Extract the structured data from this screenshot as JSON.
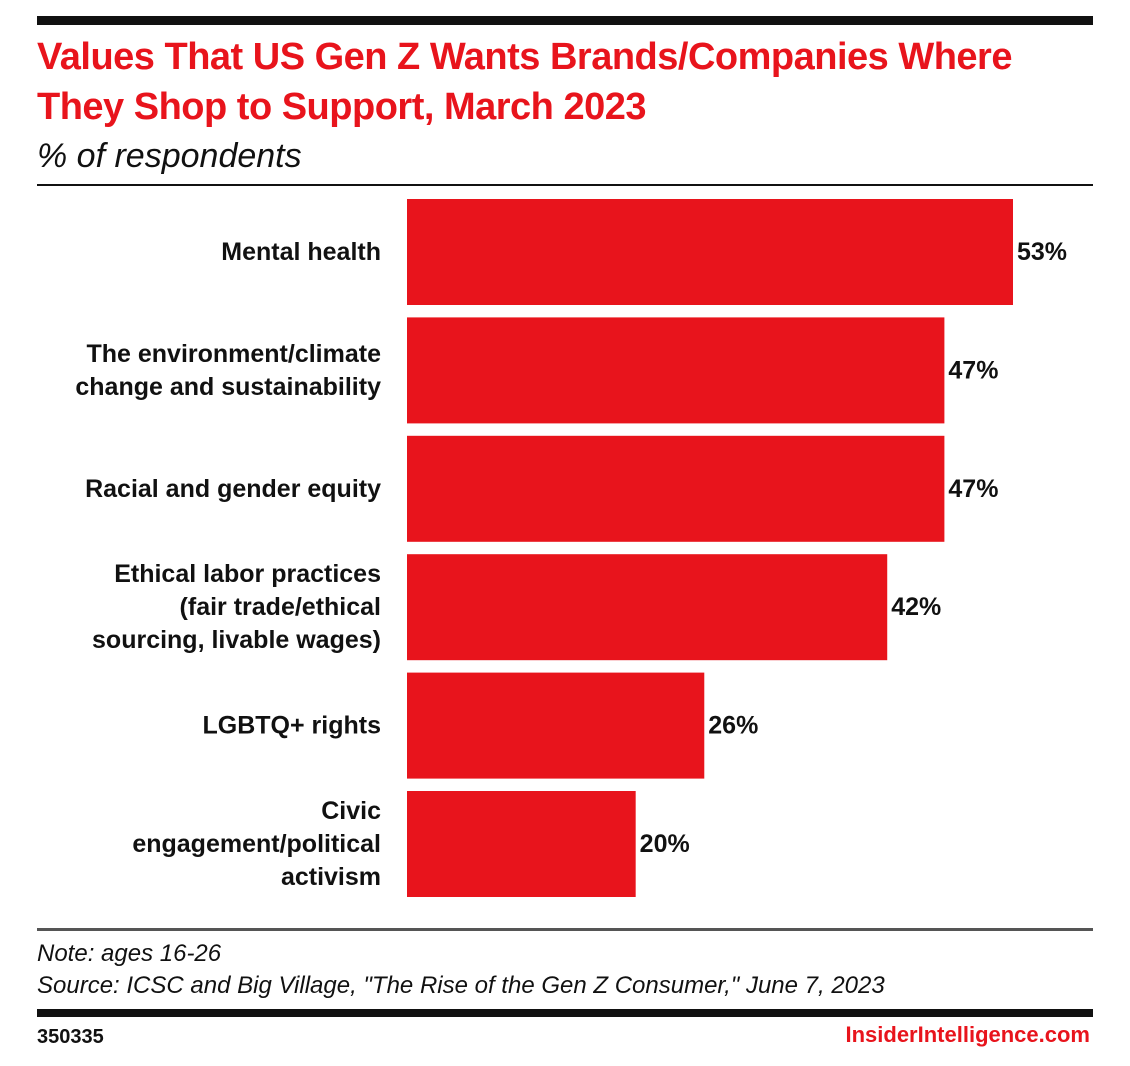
{
  "header": {
    "title": "Values That US Gen Z Wants Brands/Companies Where They Shop to Support, March 2023",
    "subtitle": "% of respondents"
  },
  "chart_data": {
    "type": "bar",
    "orientation": "horizontal",
    "title": "Values That US Gen Z Wants Brands/Companies Where They Shop to Support, March 2023",
    "subtitle": "% of respondents",
    "xlabel": "",
    "ylabel": "",
    "xlim": [
      0,
      53
    ],
    "grid": false,
    "legend": "none",
    "unit": "%",
    "bar_color": "#e8141c",
    "categories": [
      "Mental health",
      "The environment/climate change and sustainability",
      "Racial and gender equity",
      "Ethical labor practices (fair trade/ethical sourcing, livable wages)",
      "LGBTQ+ rights",
      "Civic engagement/political activism"
    ],
    "category_lines": [
      [
        "Mental health"
      ],
      [
        "The environment/climate",
        "change and sustainability"
      ],
      [
        "Racial and gender equity"
      ],
      [
        "Ethical labor practices",
        "(fair trade/ethical",
        "sourcing, livable wages)"
      ],
      [
        "LGBTQ+ rights"
      ],
      [
        "Civic",
        "engagement/political",
        "activism"
      ]
    ],
    "values": [
      53,
      47,
      47,
      42,
      26,
      20
    ],
    "value_labels": [
      "53%",
      "47%",
      "47%",
      "42%",
      "26%",
      "20%"
    ]
  },
  "footer": {
    "note": "Note: ages 16-26",
    "source": "Source: ICSC and Big Village, \"The Rise of the Gen Z Consumer,\" June 7, 2023",
    "chart_id": "350335",
    "brand": "InsiderIntelligence.com"
  }
}
